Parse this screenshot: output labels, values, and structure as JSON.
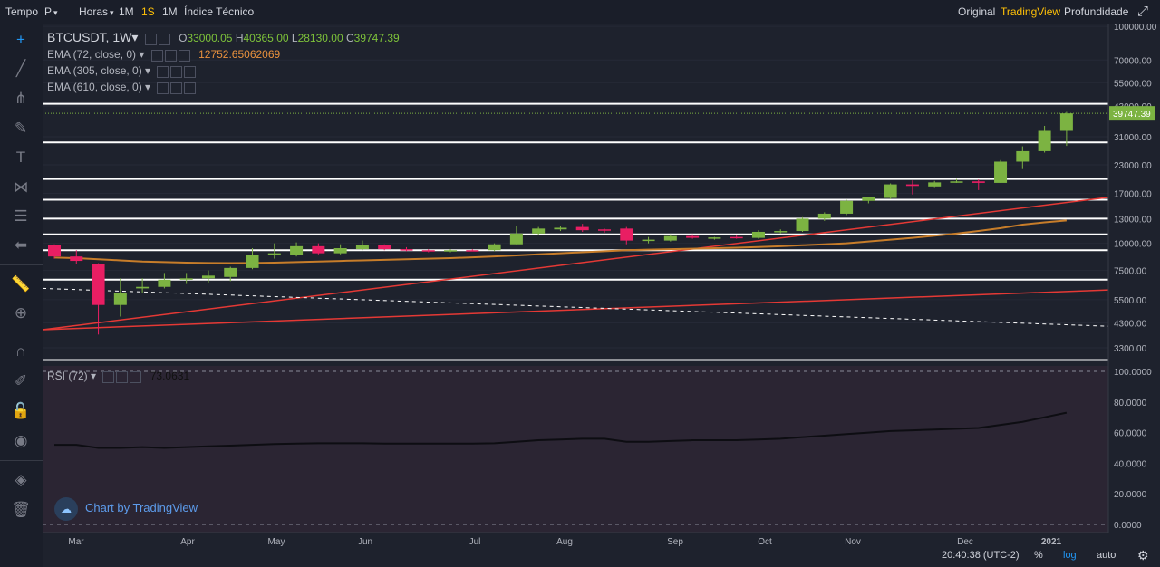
{
  "topbar": {
    "items": [
      "Tempo",
      "P",
      "Horas",
      "1M",
      "1S",
      "1M",
      "Índice Técnico"
    ],
    "selected_interval": "1S",
    "views": [
      "Original",
      "TradingView",
      "Profundidade"
    ],
    "selected_view": "TradingView"
  },
  "sidebar": {
    "icons": [
      "crosshair-icon",
      "trend-line-icon",
      "fork-icon",
      "brush-icon",
      "text-icon",
      "pattern-icon",
      "fib-icon",
      "back-arrow-icon",
      "ruler-icon",
      "zoom-icon",
      "magnet-icon",
      "lock-draw-icon",
      "lock-icon",
      "eye-icon",
      "layers-icon",
      "trash-icon"
    ]
  },
  "legend": {
    "symbol": "BTCUSDT, 1W",
    "o_label": "O",
    "o_value": "33000.05",
    "h_label": "H",
    "h_value": "40365.00",
    "l_label": "L",
    "l_value": "28130.00",
    "c_label": "C",
    "c_value": "39747.39",
    "ema1": "EMA (72, close, 0)",
    "ema1_value": "12752.65062069",
    "ema2": "EMA (305, close, 0)",
    "ema3": "EMA (610, close, 0)",
    "rsi": "RSI (72)",
    "rsi_value": "73.0631"
  },
  "watermark": "Chart by TradingView",
  "status": {
    "time": "20:40:38 (UTC-2)",
    "percent": "%",
    "log": "log",
    "auto": "auto"
  },
  "colors": {
    "up": "#7cb342",
    "down": "#e91e63",
    "ema_orange": "#c77d2a",
    "red_line": "#e53935",
    "price_label_bg": "#7cb342",
    "rsi_line": "#0d0d12",
    "rsi_bg": "#2b2533"
  },
  "chart_data": {
    "type": "candlestick",
    "price_scale": "log",
    "price_ticks": [
      "100000.00",
      "70000.00",
      "55000.00",
      "43000.00",
      "31000.00",
      "23000.00",
      "17000.00",
      "13000.00",
      "10000.00",
      "7500.00",
      "5500.00",
      "4300.00",
      "3300.00"
    ],
    "last_price_label": "39747.39",
    "x_ticks": [
      "Mar",
      "Apr",
      "May",
      "Jun",
      "Jul",
      "Aug",
      "Sep",
      "Oct",
      "Nov",
      "Dec",
      "2021"
    ],
    "horizontal_levels": [
      44000,
      29200,
      19800,
      15900,
      13000,
      11000,
      9300,
      6800,
      2900
    ],
    "candles": [
      {
        "o": 9800,
        "h": 9900,
        "l": 8500,
        "c": 8700
      },
      {
        "o": 8700,
        "h": 9300,
        "l": 8000,
        "c": 8300
      },
      {
        "o": 8000,
        "h": 8100,
        "l": 3800,
        "c": 5200
      },
      {
        "o": 5200,
        "h": 6900,
        "l": 4600,
        "c": 5900
      },
      {
        "o": 6200,
        "h": 6900,
        "l": 5900,
        "c": 6300
      },
      {
        "o": 6300,
        "h": 7300,
        "l": 6200,
        "c": 6800
      },
      {
        "o": 6800,
        "h": 7300,
        "l": 6500,
        "c": 6900
      },
      {
        "o": 6900,
        "h": 7500,
        "l": 6600,
        "c": 7100
      },
      {
        "o": 7000,
        "h": 7800,
        "l": 6700,
        "c": 7700
      },
      {
        "o": 7700,
        "h": 9500,
        "l": 7600,
        "c": 8800
      },
      {
        "o": 8900,
        "h": 10000,
        "l": 8500,
        "c": 9000
      },
      {
        "o": 8800,
        "h": 10100,
        "l": 8700,
        "c": 9700
      },
      {
        "o": 9700,
        "h": 10000,
        "l": 8900,
        "c": 9000
      },
      {
        "o": 9000,
        "h": 9900,
        "l": 8900,
        "c": 9500
      },
      {
        "o": 9400,
        "h": 10300,
        "l": 9300,
        "c": 9800
      },
      {
        "o": 9800,
        "h": 9900,
        "l": 9300,
        "c": 9400
      },
      {
        "o": 9400,
        "h": 9600,
        "l": 9200,
        "c": 9300
      },
      {
        "o": 9300,
        "h": 9400,
        "l": 9100,
        "c": 9200
      },
      {
        "o": 9200,
        "h": 9400,
        "l": 9100,
        "c": 9300
      },
      {
        "o": 9300,
        "h": 9400,
        "l": 9200,
        "c": 9250
      },
      {
        "o": 9300,
        "h": 10000,
        "l": 9200,
        "c": 9900
      },
      {
        "o": 9900,
        "h": 12000,
        "l": 9900,
        "c": 11100
      },
      {
        "o": 11100,
        "h": 11900,
        "l": 10900,
        "c": 11700
      },
      {
        "o": 11600,
        "h": 12000,
        "l": 11400,
        "c": 11800
      },
      {
        "o": 11900,
        "h": 12300,
        "l": 11300,
        "c": 11500
      },
      {
        "o": 11600,
        "h": 11700,
        "l": 11200,
        "c": 11500
      },
      {
        "o": 11700,
        "h": 11900,
        "l": 9900,
        "c": 10300
      },
      {
        "o": 10300,
        "h": 10700,
        "l": 10000,
        "c": 10400
      },
      {
        "o": 10300,
        "h": 11000,
        "l": 10200,
        "c": 10800
      },
      {
        "o": 10800,
        "h": 11000,
        "l": 10500,
        "c": 10600
      },
      {
        "o": 10600,
        "h": 10700,
        "l": 10400,
        "c": 10650
      },
      {
        "o": 10700,
        "h": 10900,
        "l": 10500,
        "c": 10600
      },
      {
        "o": 10600,
        "h": 11500,
        "l": 10500,
        "c": 11300
      },
      {
        "o": 11300,
        "h": 11600,
        "l": 11100,
        "c": 11400
      },
      {
        "o": 11400,
        "h": 13200,
        "l": 11300,
        "c": 13000
      },
      {
        "o": 13000,
        "h": 13900,
        "l": 12700,
        "c": 13700
      },
      {
        "o": 13700,
        "h": 15900,
        "l": 13500,
        "c": 15700
      },
      {
        "o": 15700,
        "h": 16400,
        "l": 15300,
        "c": 16300
      },
      {
        "o": 16200,
        "h": 18900,
        "l": 16000,
        "c": 18700
      },
      {
        "o": 18700,
        "h": 19500,
        "l": 16800,
        "c": 18400
      },
      {
        "o": 18300,
        "h": 19400,
        "l": 18000,
        "c": 19100
      },
      {
        "o": 19100,
        "h": 19800,
        "l": 19000,
        "c": 19300
      },
      {
        "o": 19300,
        "h": 19700,
        "l": 17600,
        "c": 19000
      },
      {
        "o": 19000,
        "h": 24200,
        "l": 19000,
        "c": 23800
      },
      {
        "o": 23800,
        "h": 28000,
        "l": 22000,
        "c": 26600
      },
      {
        "o": 26600,
        "h": 34800,
        "l": 26200,
        "c": 33000
      },
      {
        "o": 33000,
        "h": 40365,
        "l": 28130,
        "c": 39747
      }
    ],
    "ema_72": [
      8600,
      8550,
      8450,
      8350,
      8250,
      8200,
      8150,
      8120,
      8110,
      8120,
      8150,
      8200,
      8250,
      8300,
      8350,
      8400,
      8450,
      8500,
      8550,
      8620,
      8700,
      8800,
      8900,
      9000,
      9100,
      9200,
      9300,
      9350,
      9400,
      9450,
      9500,
      9550,
      9620,
      9700,
      9800,
      9900,
      10000,
      10200,
      10400,
      10600,
      10850,
      11100,
      11400,
      11750,
      12200,
      12500,
      12752
    ],
    "rsi": {
      "name": "RSI (72)",
      "value": 73.0631,
      "ticks": [
        "100.0000",
        "80.0000",
        "60.0000",
        "40.0000",
        "20.0000",
        "0.0000"
      ],
      "values": [
        52,
        52,
        50,
        50,
        50.5,
        50,
        50.5,
        51,
        51.5,
        52,
        52.5,
        52.8,
        53,
        53,
        53,
        52.8,
        52.8,
        52.8,
        52.8,
        52.8,
        53,
        54,
        55,
        55.5,
        56,
        56,
        54,
        54,
        54.5,
        55,
        55,
        55,
        55.5,
        56,
        57,
        58,
        59,
        60,
        61,
        61.5,
        62,
        62.5,
        63,
        65,
        67,
        70,
        73
      ]
    }
  }
}
